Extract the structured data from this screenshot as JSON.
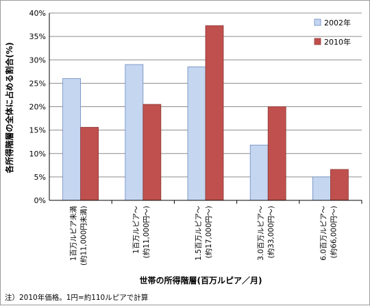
{
  "chart_data": {
    "type": "bar",
    "ylabel": "各所得階層の全体に占める割合(%)",
    "xlabel": "世帯の所得階層(百万ルピア／月)",
    "ylim": [
      0,
      40
    ],
    "y_ticks": [
      "0%",
      "5%",
      "10%",
      "15%",
      "20%",
      "25%",
      "30%",
      "35%",
      "40%"
    ],
    "categories": [
      [
        "1百万ルピア未満",
        "(約11,000円未満)"
      ],
      [
        "1百万ルピア〜",
        "(約11,000円〜)"
      ],
      [
        "1.5百万ルピア〜",
        "(約17,000円〜)"
      ],
      [
        "3.0百万ルピア〜",
        "(約33,000円〜)"
      ],
      [
        "6.0百万ルピア〜",
        "(約66,000円〜)"
      ]
    ],
    "series": [
      {
        "name": "2002年",
        "values": [
          26.0,
          29.0,
          28.5,
          11.8,
          5.0
        ],
        "color": "#c5d6f0",
        "stroke": "#6a88bd"
      },
      {
        "name": "2010年",
        "values": [
          15.6,
          20.5,
          37.3,
          20.0,
          6.6
        ],
        "color": "#c0504d",
        "stroke": "#8c3836"
      }
    ],
    "grid": true,
    "legend_position": "top-right",
    "note": "注）2010年価格。1円=約110ルピアで計算"
  }
}
